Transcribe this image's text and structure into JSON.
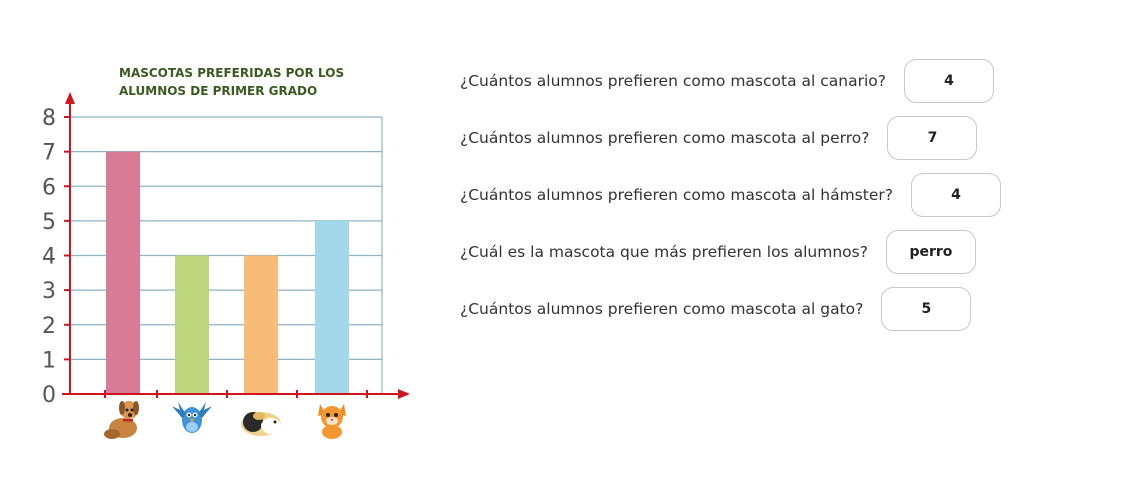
{
  "chart_data": {
    "type": "bar",
    "title": "MASCOTAS PREFERIDAS POR LOS\nALUMNOS DE PRIMER GRADO",
    "categories": [
      "perro",
      "canario",
      "hámster",
      "gato"
    ],
    "category_icons": [
      "dog-icon",
      "bird-icon",
      "hamster-icon",
      "cat-icon"
    ],
    "values": [
      7,
      4,
      4,
      5
    ],
    "bar_colors": [
      "#d77b97",
      "#bed67e",
      "#f7bd78",
      "#a2d8ea"
    ],
    "ylim": [
      0,
      8
    ],
    "yticks": [
      "0",
      "1",
      "2",
      "3",
      "4",
      "5",
      "6",
      "7",
      "8"
    ],
    "grid": true,
    "axis_color": "#d0141e",
    "grid_color": "#8fb3c6"
  },
  "questions": [
    {
      "text": "¿Cuántos alumnos prefieren como mascota al canario?",
      "answer": "4"
    },
    {
      "text": "¿Cuántos alumnos prefieren como mascota al perro?",
      "answer": "7"
    },
    {
      "text": "¿Cuántos alumnos prefieren como mascota al hámster?",
      "answer": "4"
    },
    {
      "text": "¿Cuál es la mascota que más prefieren los alumnos?",
      "answer": "perro"
    },
    {
      "text": "¿Cuántos alumnos prefieren como mascota al gato?",
      "answer": "5"
    }
  ]
}
